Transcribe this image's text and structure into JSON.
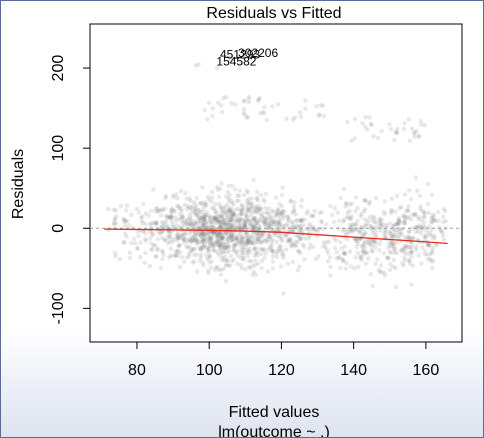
{
  "chart_data": {
    "type": "scatter",
    "title": "Residuals vs Fitted",
    "xlabel": "Fitted values",
    "xlabel_sub": "lm(outcome ~ .)",
    "ylabel": "Residuals",
    "xlim": [
      67,
      170
    ],
    "ylim": [
      -142,
      255
    ],
    "xticks": [
      80,
      100,
      120,
      140,
      160
    ],
    "yticks": [
      -100,
      0,
      100,
      200
    ],
    "zero_line": true,
    "point_color": "#808080",
    "point_alpha": 0.18,
    "smooth_color": "#e8291c",
    "smoother": {
      "x": [
        71,
        80,
        90,
        100,
        110,
        120,
        130,
        140,
        150,
        160,
        166
      ],
      "y": [
        -1,
        -1.5,
        -2,
        -2.5,
        -3.5,
        -5,
        -8,
        -11,
        -14,
        -17,
        -19
      ]
    },
    "labeled_points": [
      {
        "label": "302206",
        "x": 108,
        "y": 214
      },
      {
        "label": "451293",
        "x": 103,
        "y": 212
      },
      {
        "label": "154582",
        "x": 102,
        "y": 203
      }
    ]
  }
}
